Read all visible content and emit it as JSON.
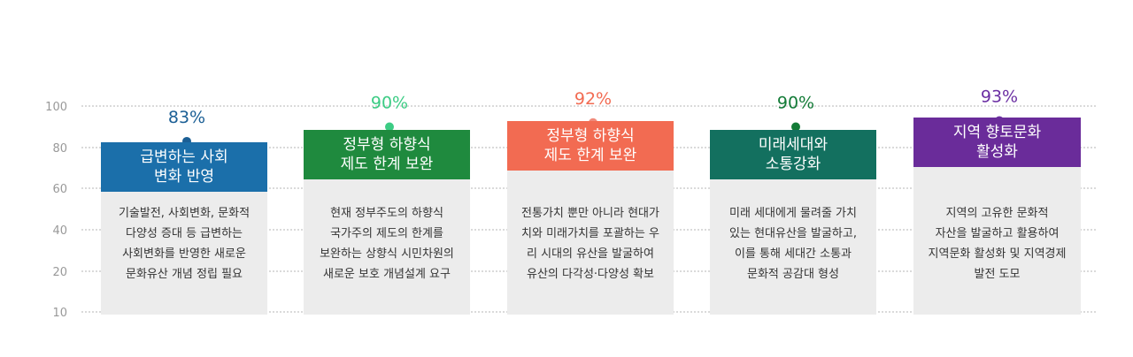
{
  "chart_data": {
    "type": "bar",
    "ylim": [
      10,
      100
    ],
    "yticks": [
      100,
      80,
      60,
      40,
      20,
      10
    ],
    "grid": true,
    "categories": [
      "급변하는 사회\n변화 반영",
      "정부형 하향식\n제도 한계 보완",
      "정부형 하향식\n제도 한계 보완",
      "미래세대와\n소통강화",
      "지역 향토문화\n활성화"
    ],
    "values": [
      83,
      90,
      92,
      90,
      93
    ],
    "value_labels": [
      "83%",
      "90%",
      "92%",
      "90%",
      "93%"
    ],
    "descriptions": [
      "기술발전, 사회변화, 문화적\n다양성 증대 등 급변하는\n사회변화를 반영한 새로운\n문화유산 개념 정립 필요",
      "현재 정부주도의 하향식\n국가주의 제도의 한계를\n보완하는 상향식 시민차원의\n새로운 보호 개념설계 요구",
      "전통가치 뿐만 아니라 현대가\n치와 미래가치를 포괄하는 우\n리 시대의 유산을 발굴하여\n유산의 다각성·다양성 확보",
      "미래 세대에게 물려줄 가치\n있는 현대유산을 발굴하고,\n이를 통해 세대간 소통과\n문화적 공감대 형성",
      "지역의 고유한 문화적\n자산을 발굴하고 활용하여\n지역문화 활성화 및 지역경제\n발전 도모"
    ],
    "colors": [
      "#1b6faa",
      "#1f8a3e",
      "#f26b52",
      "#13705f",
      "#6a2c9a"
    ],
    "marker_colors": [
      "#1b5f95",
      "#3ccc84",
      "#f08a7b",
      "#137b37",
      "#6b2fa3"
    ]
  }
}
